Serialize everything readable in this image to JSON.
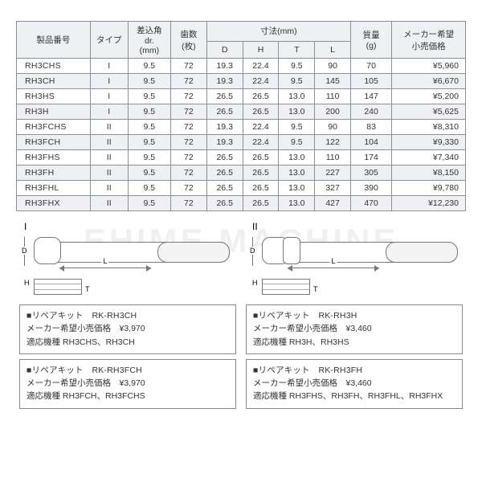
{
  "watermark": "EHIME MACHINE",
  "table": {
    "head": {
      "model": "製品番号",
      "type": "タイプ",
      "drive": "差込角\ndr.\n(mm)",
      "teeth": "歯数\n(枚)",
      "dim_group": "寸法(mm)",
      "D": "D",
      "H": "H",
      "T": "T",
      "L": "L",
      "mass": "質量\n(g)",
      "price": "メーカー希望\n小売価格"
    },
    "col_widths": [
      "86",
      "44",
      "50",
      "42",
      "42",
      "42",
      "42",
      "42",
      "48",
      "86"
    ],
    "rows": [
      {
        "model": "RH3CHS",
        "type": "I",
        "drive": "9.5",
        "teeth": "72",
        "D": "19.3",
        "H": "22.4",
        "T": "9.5",
        "L": "90",
        "mass": "70",
        "price": "¥5,960",
        "band": false
      },
      {
        "model": "RH3CH",
        "type": "I",
        "drive": "9.5",
        "teeth": "72",
        "D": "19.3",
        "H": "22.4",
        "T": "9.5",
        "L": "145",
        "mass": "105",
        "price": "¥6,670",
        "band": true
      },
      {
        "model": "RH3HS",
        "type": "I",
        "drive": "9.5",
        "teeth": "72",
        "D": "26.5",
        "H": "26.5",
        "T": "13.0",
        "L": "110",
        "mass": "147",
        "price": "¥5,200",
        "band": false
      },
      {
        "model": "RH3H",
        "type": "I",
        "drive": "9.5",
        "teeth": "72",
        "D": "26.5",
        "H": "26.5",
        "T": "13.0",
        "L": "200",
        "mass": "240",
        "price": "¥5,625",
        "band": true
      },
      {
        "model": "RH3FCHS",
        "type": "II",
        "drive": "9.5",
        "teeth": "72",
        "D": "19.3",
        "H": "22.4",
        "T": "9.5",
        "L": "90",
        "mass": "83",
        "price": "¥8,310",
        "band": false
      },
      {
        "model": "RH3FCH",
        "type": "II",
        "drive": "9.5",
        "teeth": "72",
        "D": "19.3",
        "H": "22.4",
        "T": "9.5",
        "L": "122",
        "mass": "104",
        "price": "¥9,330",
        "band": true
      },
      {
        "model": "RH3FHS",
        "type": "II",
        "drive": "9.5",
        "teeth": "72",
        "D": "26.5",
        "H": "26.5",
        "T": "13.0",
        "L": "110",
        "mass": "174",
        "price": "¥7,340",
        "band": false
      },
      {
        "model": "RH3FH",
        "type": "II",
        "drive": "9.5",
        "teeth": "72",
        "D": "26.5",
        "H": "26.5",
        "T": "13.0",
        "L": "227",
        "mass": "305",
        "price": "¥8,150",
        "band": true
      },
      {
        "model": "RH3FHL",
        "type": "II",
        "drive": "9.5",
        "teeth": "72",
        "D": "26.5",
        "H": "26.5",
        "T": "13.0",
        "L": "327",
        "mass": "390",
        "price": "¥9,780",
        "band": false
      },
      {
        "model": "RH3FHX",
        "type": "II",
        "drive": "9.5",
        "teeth": "72",
        "D": "26.5",
        "H": "26.5",
        "T": "13.0",
        "L": "427",
        "mass": "470",
        "price": "¥12,230",
        "band": true
      }
    ]
  },
  "diagrams": {
    "left_label": "I",
    "right_label": "II",
    "letters": {
      "L": "L",
      "D": "D",
      "H": "H",
      "T": "T"
    }
  },
  "kits": [
    {
      "title": "■リペアキット　RK-RH3CH",
      "price_line": "メーカー希望小売価格　¥3,970",
      "models_line": "適応機種 RH3CHS、RH3CH"
    },
    {
      "title": "■リペアキット　RK-RH3H",
      "price_line": "メーカー希望小売価格　¥3,460",
      "models_line": "適応機種 RH3H、RH3HS"
    },
    {
      "title": "■リペアキット　RK-RH3FCH",
      "price_line": "メーカー希望小売価格　¥3,970",
      "models_line": "適応機種 RH3FCH、RH3FCHS"
    },
    {
      "title": "■リペアキット　RK-RH3FH",
      "price_line": "メーカー希望小売価格　¥3,460",
      "models_line": "適応機種 RH3FHS、RH3FH、RH3FHL、RH3FHX"
    }
  ]
}
